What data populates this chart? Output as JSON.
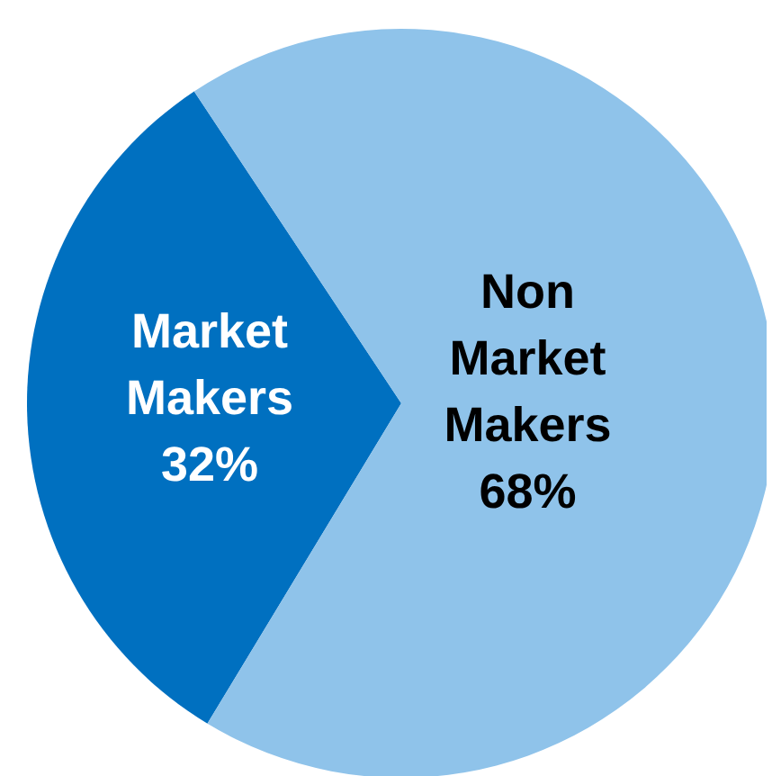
{
  "chart_data": {
    "type": "pie",
    "categories": [
      "Market Makers",
      "Non Market Makers"
    ],
    "values": [
      32,
      68
    ],
    "colors": [
      "#0070c0",
      "#8fc3ea"
    ],
    "value_labels": [
      "32%",
      "68%"
    ]
  }
}
